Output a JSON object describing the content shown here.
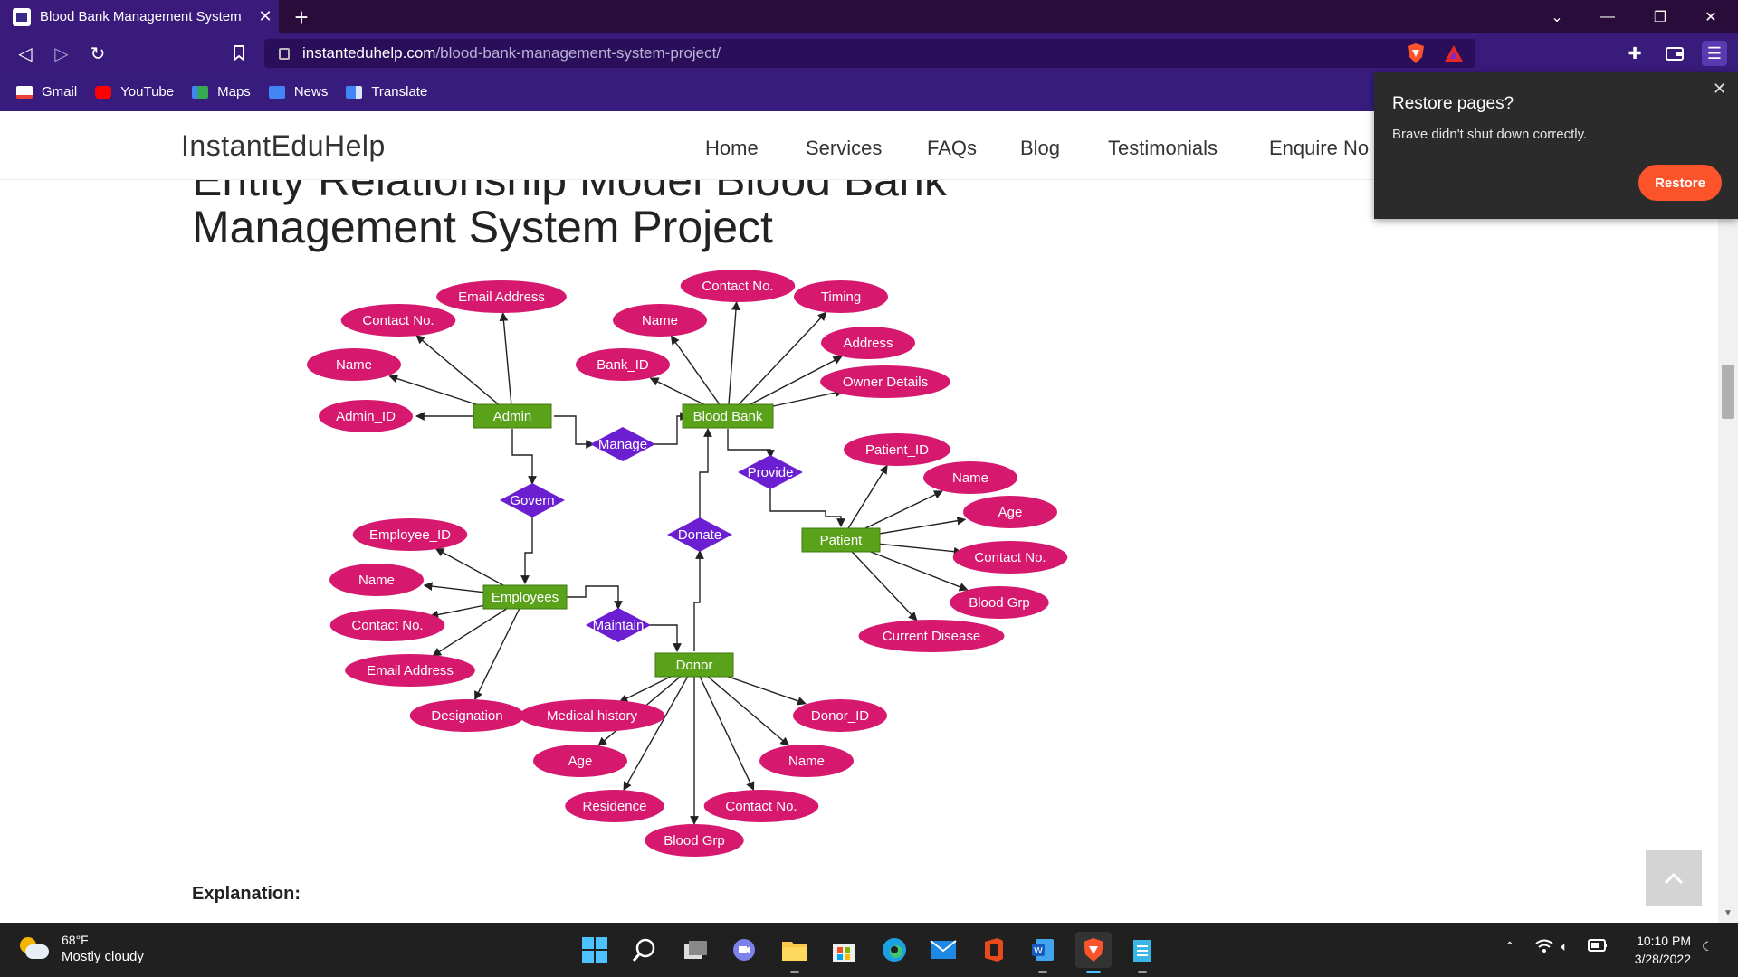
{
  "browser": {
    "tab_title": "Blood Bank Management System",
    "url_host": "instanteduhelp.com",
    "url_path": "/blood-bank-management-system-project/",
    "bookmarks": [
      "Gmail",
      "YouTube",
      "Maps",
      "News",
      "Translate"
    ]
  },
  "site": {
    "logo": "InstantEduHelp",
    "nav": [
      "Home",
      "Services",
      "FAQs",
      "Blog",
      "Testimonials",
      "Enquire No"
    ],
    "heading_line1": "Entity Relationship Model Blood Bank",
    "heading_line2": "Management System Project",
    "explanation_label": "Explanation:"
  },
  "popup": {
    "title": "Restore pages?",
    "body": "Brave didn't shut down correctly.",
    "button": "Restore"
  },
  "diagram": {
    "colors": {
      "attribute": "#d6196e",
      "entity": "#5aa21a",
      "relationship": "#6b1fd1",
      "line": "#222222"
    },
    "entities": [
      {
        "id": "admin",
        "label": "Admin"
      },
      {
        "id": "bloodbank",
        "label": "Blood Bank"
      },
      {
        "id": "patient",
        "label": "Patient"
      },
      {
        "id": "employees",
        "label": "Employees"
      },
      {
        "id": "donor",
        "label": "Donor"
      }
    ],
    "relationships": [
      {
        "id": "manage",
        "label": "Manage"
      },
      {
        "id": "provide",
        "label": "Provide"
      },
      {
        "id": "govern",
        "label": "Govern"
      },
      {
        "id": "donate",
        "label": "Donate"
      },
      {
        "id": "maintain",
        "label": "Maintain"
      }
    ],
    "attributes": {
      "admin": [
        "Email Address",
        "Contact No.",
        "Name",
        "Admin_ID"
      ],
      "bloodbank": [
        "Contact No.",
        "Timing",
        "Name",
        "Address",
        "Bank_ID",
        "Owner Details"
      ],
      "patient": [
        "Patient_ID",
        "Name",
        "Age",
        "Contact No.",
        "Blood Grp",
        "Current Disease"
      ],
      "employees": [
        "Employee_ID",
        "Name",
        "Contact No.",
        "Email Address",
        "Designation"
      ],
      "donor": [
        "Medical history",
        "Donor_ID",
        "Age",
        "Name",
        "Residence",
        "Contact No.",
        "Blood Grp"
      ]
    }
  },
  "taskbar": {
    "temperature": "68°F",
    "condition": "Mostly cloudy",
    "time": "10:10 PM",
    "date": "3/28/2022"
  }
}
